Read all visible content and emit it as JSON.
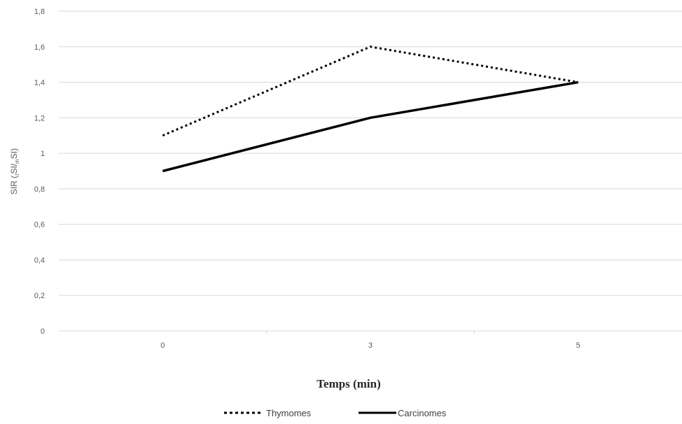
{
  "chart_data": {
    "type": "line",
    "x": [
      "0",
      "3",
      "5"
    ],
    "series": [
      {
        "name": "Thymomes",
        "values": [
          1.1,
          1.6,
          1.4
        ],
        "style": "dotted",
        "color": "#000000"
      },
      {
        "name": "Carcinomes",
        "values": [
          0.9,
          1.2,
          1.4
        ],
        "style": "solid",
        "color": "#000000"
      }
    ],
    "ylabel": {
      "main": "SIR (",
      "sub1": "t",
      "mid": "SI/",
      "sub2": "m",
      "end": "SI)"
    },
    "xlabel": "Temps (min)",
    "ylim": [
      0,
      1.8
    ],
    "yticks": [
      {
        "value": 0,
        "label": "0"
      },
      {
        "value": 0.2,
        "label": "0,2"
      },
      {
        "value": 0.4,
        "label": "0,4"
      },
      {
        "value": 0.6,
        "label": "0,6"
      },
      {
        "value": 0.8,
        "label": "0,8"
      },
      {
        "value": 1.0,
        "label": "1"
      },
      {
        "value": 1.2,
        "label": "1,2"
      },
      {
        "value": 1.4,
        "label": "1,4"
      },
      {
        "value": 1.6,
        "label": "1,6"
      },
      {
        "value": 1.8,
        "label": "1,8"
      }
    ],
    "grid": true,
    "legend_position": "bottom",
    "gridline_color": "#d9d9d9"
  }
}
